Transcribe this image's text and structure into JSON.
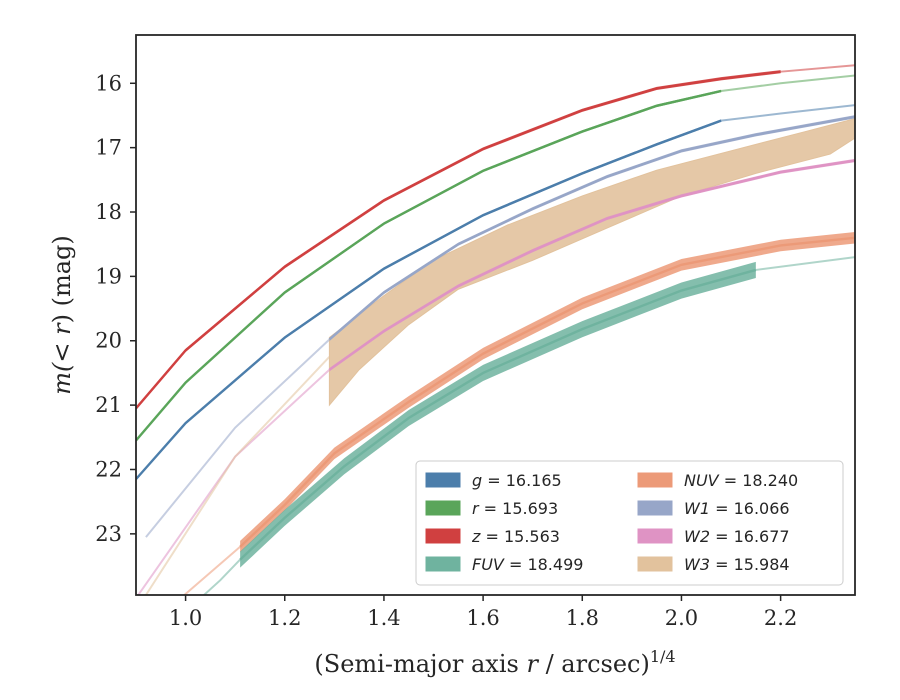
{
  "chart_data": {
    "type": "line",
    "xlabel_main": "(Semi-major axis ",
    "xlabel_var": "r",
    "xlabel_mid": " / arcsec)",
    "xlabel_sup": "1/4",
    "ylabel_pre": "m(< ",
    "ylabel_var": "r",
    "ylabel_post": ") (mag)",
    "xlim": [
      0.9,
      2.35
    ],
    "ylim": [
      23.95,
      15.25
    ],
    "y_inverted": true,
    "x_ticks": [
      {
        "v": 1.0,
        "label": "1.0"
      },
      {
        "v": 1.2,
        "label": "1.2"
      },
      {
        "v": 1.4,
        "label": "1.4"
      },
      {
        "v": 1.6,
        "label": "1.6"
      },
      {
        "v": 1.8,
        "label": "1.8"
      },
      {
        "v": 2.0,
        "label": "2.0"
      },
      {
        "v": 2.2,
        "label": "2.2"
      }
    ],
    "y_ticks": [
      {
        "v": 16,
        "label": "16"
      },
      {
        "v": 17,
        "label": "17"
      },
      {
        "v": 18,
        "label": "18"
      },
      {
        "v": 19,
        "label": "19"
      },
      {
        "v": 20,
        "label": "20"
      },
      {
        "v": 21,
        "label": "21"
      },
      {
        "v": 22,
        "label": "22"
      },
      {
        "v": 23,
        "label": "23"
      }
    ],
    "grid": false,
    "legend_placement": "lower-right",
    "series": [
      {
        "key": "g",
        "var": "g",
        "value": "16.165",
        "color": "#4c7eab",
        "width": 0.04,
        "ext_pre": [
          [
            0.9,
            22.15
          ]
        ],
        "solid": [
          [
            0.9,
            22.15
          ],
          [
            1.0,
            21.28
          ],
          [
            1.2,
            19.95
          ],
          [
            1.4,
            18.88
          ],
          [
            1.6,
            18.05
          ],
          [
            1.8,
            17.4
          ],
          [
            1.95,
            16.95
          ],
          [
            2.08,
            16.58
          ]
        ],
        "ext_post": [
          [
            2.08,
            16.58
          ],
          [
            2.2,
            16.47
          ],
          [
            2.35,
            16.34
          ]
        ]
      },
      {
        "key": "r",
        "var": "r",
        "value": "15.693",
        "color": "#5aa55a",
        "width": 0.04,
        "ext_pre": [
          [
            0.9,
            21.55
          ]
        ],
        "solid": [
          [
            0.9,
            21.55
          ],
          [
            1.0,
            20.65
          ],
          [
            1.2,
            19.25
          ],
          [
            1.4,
            18.18
          ],
          [
            1.6,
            17.36
          ],
          [
            1.8,
            16.75
          ],
          [
            1.95,
            16.35
          ],
          [
            2.08,
            16.12
          ]
        ],
        "ext_post": [
          [
            2.08,
            16.12
          ],
          [
            2.2,
            16.0
          ],
          [
            2.35,
            15.88
          ]
        ]
      },
      {
        "key": "z",
        "var": "z",
        "value": "15.563",
        "color": "#d04040",
        "width": 0.05,
        "ext_pre": [
          [
            0.9,
            21.05
          ]
        ],
        "solid": [
          [
            0.9,
            21.05
          ],
          [
            1.0,
            20.15
          ],
          [
            1.2,
            18.85
          ],
          [
            1.4,
            17.82
          ],
          [
            1.6,
            17.02
          ],
          [
            1.8,
            16.42
          ],
          [
            1.95,
            16.08
          ],
          [
            2.08,
            15.93
          ],
          [
            2.2,
            15.82
          ]
        ],
        "ext_post": [
          [
            2.2,
            15.82
          ],
          [
            2.35,
            15.72
          ]
        ]
      },
      {
        "key": "FUV",
        "var": "FUV",
        "value": "18.499",
        "color": "#6fb39f",
        "width": 0.25,
        "ext_pre": [
          [
            1.03,
            24.0
          ],
          [
            1.07,
            23.72
          ],
          [
            1.11,
            23.4
          ]
        ],
        "solid": [
          [
            1.11,
            23.4
          ],
          [
            1.2,
            22.75
          ],
          [
            1.32,
            21.95
          ],
          [
            1.45,
            21.2
          ],
          [
            1.6,
            20.5
          ],
          [
            1.8,
            19.82
          ],
          [
            2.0,
            19.22
          ],
          [
            2.15,
            18.9
          ]
        ],
        "ext_post": [
          [
            2.15,
            18.9
          ],
          [
            2.35,
            18.7
          ]
        ]
      },
      {
        "key": "NUV",
        "var": "NUV",
        "value": "18.240",
        "color": "#ec9a78",
        "width": 0.18,
        "ext_pre": [
          [
            0.99,
            24.0
          ],
          [
            1.05,
            23.6
          ],
          [
            1.11,
            23.2
          ]
        ],
        "solid": [
          [
            1.11,
            23.2
          ],
          [
            1.2,
            22.55
          ],
          [
            1.3,
            21.75
          ],
          [
            1.45,
            20.95
          ],
          [
            1.6,
            20.2
          ],
          [
            1.8,
            19.42
          ],
          [
            2.0,
            18.82
          ],
          [
            2.2,
            18.52
          ],
          [
            2.35,
            18.4
          ]
        ],
        "ext_post": []
      },
      {
        "key": "W1",
        "var": "W1",
        "value": "16.066",
        "color": "#97a6c8",
        "width": 0.05,
        "ext_pre": [
          [
            0.92,
            23.05
          ],
          [
            1.1,
            21.35
          ],
          [
            1.29,
            19.98
          ]
        ],
        "solid": [
          [
            1.29,
            19.98
          ],
          [
            1.4,
            19.25
          ],
          [
            1.55,
            18.5
          ],
          [
            1.7,
            17.95
          ],
          [
            1.85,
            17.45
          ],
          [
            2.0,
            17.05
          ],
          [
            2.15,
            16.8
          ],
          [
            2.35,
            16.52
          ]
        ],
        "ext_post": []
      },
      {
        "key": "W2",
        "var": "W2",
        "value": "16.677",
        "color": "#df93c4",
        "width": 0.05,
        "ext_pre": [
          [
            0.9,
            24.0
          ],
          [
            1.1,
            21.8
          ],
          [
            1.29,
            20.45
          ]
        ],
        "solid": [
          [
            1.29,
            20.45
          ],
          [
            1.4,
            19.85
          ],
          [
            1.55,
            19.15
          ],
          [
            1.7,
            18.6
          ],
          [
            1.85,
            18.1
          ],
          [
            2.0,
            17.75
          ],
          [
            2.2,
            17.38
          ],
          [
            2.35,
            17.2
          ]
        ],
        "ext_post": []
      },
      {
        "key": "W3",
        "var": "W3",
        "value": "15.984",
        "color": "#e2c29d",
        "band": true,
        "ext_pre": [
          [
            0.92,
            23.95
          ],
          [
            1.1,
            21.8
          ],
          [
            1.29,
            20.25
          ]
        ],
        "upper": [
          [
            1.29,
            19.95
          ],
          [
            1.4,
            19.3
          ],
          [
            1.5,
            18.75
          ],
          [
            1.65,
            18.2
          ],
          [
            1.8,
            17.75
          ],
          [
            1.95,
            17.35
          ],
          [
            2.1,
            17.05
          ],
          [
            2.25,
            16.75
          ],
          [
            2.35,
            16.55
          ]
        ],
        "lower": [
          [
            1.29,
            21.0
          ],
          [
            1.35,
            20.45
          ],
          [
            1.45,
            19.75
          ],
          [
            1.55,
            19.2
          ],
          [
            1.7,
            18.75
          ],
          [
            1.85,
            18.25
          ],
          [
            2.0,
            17.75
          ],
          [
            2.15,
            17.4
          ],
          [
            2.3,
            17.1
          ],
          [
            2.35,
            16.85
          ]
        ]
      }
    ],
    "legend_order": [
      "g",
      "r",
      "z",
      "FUV",
      "NUV",
      "W1",
      "W2",
      "W3"
    ]
  }
}
